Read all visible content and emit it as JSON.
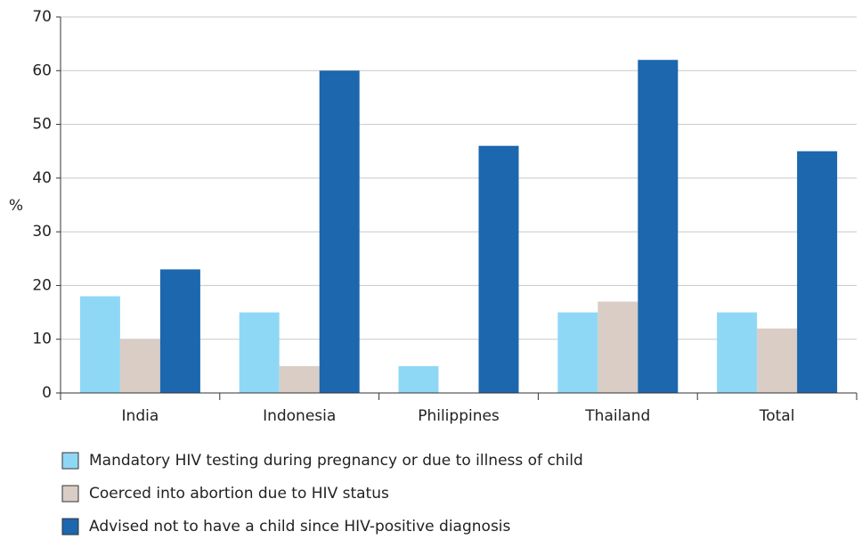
{
  "chart_data": {
    "type": "bar",
    "y_label": "%",
    "categories": [
      "India",
      "Indonesia",
      "Philippines",
      "Thailand",
      "Total"
    ],
    "series": [
      {
        "name": "Mandatory HIV testing during pregnancy or due to illness of child",
        "color": "#8fd8f5",
        "values": [
          18,
          15,
          5,
          15,
          15
        ]
      },
      {
        "name": "Coerced into abortion due to HIV status",
        "color": "#d9cdc6",
        "values": [
          10,
          5,
          0,
          17,
          12
        ]
      },
      {
        "name": "Advised not to have a child since HIV-positive diagnosis",
        "color": "#1c67ad",
        "values": [
          23,
          60,
          46,
          62,
          45
        ]
      }
    ],
    "ylim": [
      0,
      70
    ],
    "yticks": [
      0,
      10,
      20,
      30,
      40,
      50,
      60,
      70
    ],
    "grid": true
  }
}
